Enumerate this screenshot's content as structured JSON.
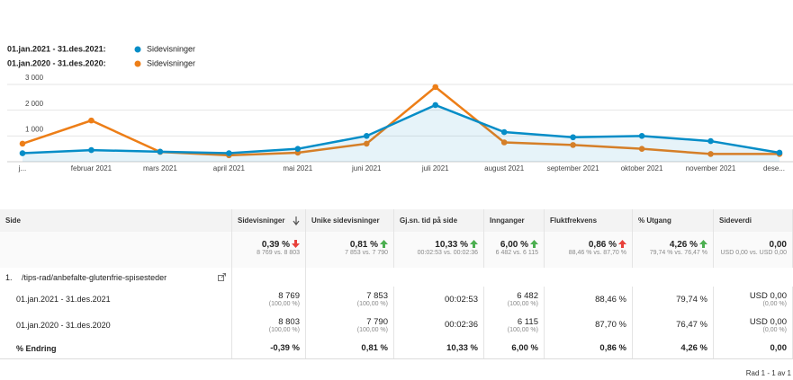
{
  "chart_data": {
    "type": "line",
    "categories": [
      "j...",
      "februar 2021",
      "mars 2021",
      "april 2021",
      "mai 2021",
      "juni 2021",
      "juli 2021",
      "august 2021",
      "september 2021",
      "oktober 2021",
      "november 2021",
      "dese..."
    ],
    "series": [
      {
        "name": "Sidevisninger",
        "period": "01.jan.2021 - 31.des.2021:",
        "color": "#058dc7",
        "area": true,
        "values": [
          330,
          450,
          390,
          330,
          500,
          1000,
          2200,
          1150,
          950,
          1000,
          800,
          350
        ]
      },
      {
        "name": "Sidevisninger",
        "period": "01.jan.2020 - 31.des.2020:",
        "color": "#ed7e17",
        "area": false,
        "values": [
          700,
          1600,
          380,
          250,
          350,
          700,
          2900,
          750,
          650,
          500,
          300,
          300
        ]
      }
    ],
    "ylim": [
      0,
      3000
    ],
    "yticks": [
      {
        "value": 1000,
        "label": "1 000"
      },
      {
        "value": 2000,
        "label": "2 000"
      },
      {
        "value": 3000,
        "label": "3 000"
      }
    ],
    "grid": true
  },
  "table": {
    "headers": [
      "Side",
      "Sidevisninger",
      "Unike sidevisninger",
      "Gj.sn. tid på side",
      "Innganger",
      "Fluktfrekvens",
      "% Utgang",
      "Sideverdi"
    ],
    "summary": [
      {
        "main": "0,39 %",
        "trend": "down",
        "color": "#e8413b",
        "detail": "8 769 vs. 8 803"
      },
      {
        "main": "0,81 %",
        "trend": "up",
        "color": "#4caf50",
        "detail": "7 853 vs. 7 790"
      },
      {
        "main": "10,33 %",
        "trend": "up",
        "color": "#4caf50",
        "detail": "00:02:53 vs. 00:02:36"
      },
      {
        "main": "6,00 %",
        "trend": "up",
        "color": "#4caf50",
        "detail": "6 482 vs. 6 115"
      },
      {
        "main": "0,86 %",
        "trend": "up",
        "color": "#e8413b",
        "detail": "88,46 % vs. 87,70 %"
      },
      {
        "main": "4,26 %",
        "trend": "up",
        "color": "#4caf50",
        "detail": "79,74 % vs. 76,47 %"
      },
      {
        "main": "0,00",
        "detail": "USD 0,00 vs. USD 0,00"
      }
    ],
    "page_index": "1.",
    "page_path": "/tips-rad/anbefalte-glutenfrie-spisesteder",
    "rows": [
      {
        "label": "01.jan.2021 - 31.des.2021",
        "cells": [
          {
            "main": "8 769",
            "sub": "(100,00 %)"
          },
          {
            "main": "7 853",
            "sub": "(100,00 %)"
          },
          {
            "main": "00:02:53"
          },
          {
            "main": "6 482",
            "sub": "(100,00 %)"
          },
          {
            "main": "88,46 %"
          },
          {
            "main": "79,74 %"
          },
          {
            "main": "USD 0,00",
            "sub": "(0,00 %)"
          }
        ]
      },
      {
        "label": "01.jan.2020 - 31.des.2020",
        "cells": [
          {
            "main": "8 803",
            "sub": "(100,00 %)"
          },
          {
            "main": "7 790",
            "sub": "(100,00 %)"
          },
          {
            "main": "00:02:36"
          },
          {
            "main": "6 115",
            "sub": "(100,00 %)"
          },
          {
            "main": "87,70 %"
          },
          {
            "main": "76,47 %"
          },
          {
            "main": "USD 0,00",
            "sub": "(0,00 %)"
          }
        ]
      },
      {
        "label": "% Endring",
        "bold": true,
        "cells": [
          {
            "main": "-0,39 %"
          },
          {
            "main": "0,81 %"
          },
          {
            "main": "10,33 %"
          },
          {
            "main": "6,00 %"
          },
          {
            "main": "0,86 %"
          },
          {
            "main": "4,26 %"
          },
          {
            "main": "0,00"
          }
        ]
      }
    ],
    "footer": "Rad 1 - 1 av 1"
  }
}
